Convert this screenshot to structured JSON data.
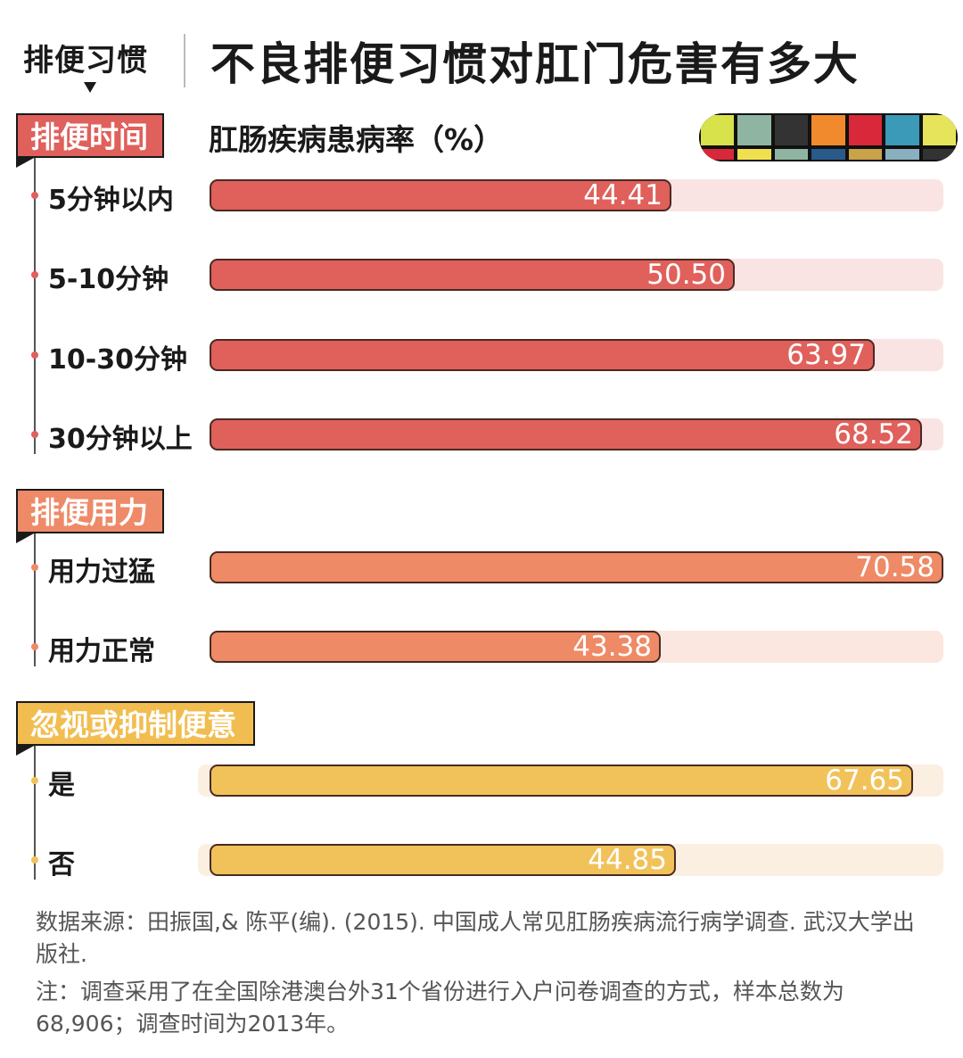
{
  "header": {
    "kicker": "排便习惯",
    "title": "不良排便习惯对肛门危害有多大",
    "subtitle": "肛肠疾病患病率（%）"
  },
  "decor": {
    "strip_top": [
      "#d8e24a",
      "#8fb5a2",
      "#333333",
      "#f08a2c",
      "#d8283a",
      "#3a9ab8",
      "#e6e45a"
    ],
    "strip_bottom": [
      "#d8283a",
      "#f0e050",
      "#8fb5a2",
      "#2a5a8a",
      "#c9a24a",
      "#8ab0c0",
      "#333333"
    ]
  },
  "chart_data": {
    "type": "bar",
    "orientation": "horizontal",
    "xlim": [
      0,
      70.58
    ],
    "groups": [
      {
        "name": "排便时间",
        "color": "#e0605c",
        "track_color": "#f9e4e3",
        "label_color": "#e0605c",
        "categories": [
          "5分钟以内",
          "5-10分钟",
          "10-30分钟",
          "30分钟以上"
        ],
        "values": [
          44.41,
          50.5,
          63.97,
          68.52
        ],
        "value_labels": [
          "44.41",
          "50.50",
          "63.97",
          "68.52"
        ]
      },
      {
        "name": "排便用力",
        "color": "#ef8a66",
        "track_color": "#fbe7df",
        "label_color": "#ee8a68",
        "categories": [
          "用力过猛",
          "用力正常"
        ],
        "values": [
          70.58,
          43.38
        ],
        "value_labels": [
          "70.58",
          "43.38"
        ]
      },
      {
        "name": "忽视或抑制便意",
        "color": "#f2c25a",
        "track_color": "#fbefe2",
        "label_color": "#f2bd50",
        "categories": [
          "是",
          "否"
        ],
        "values": [
          67.65,
          44.85
        ],
        "value_labels": [
          "67.65",
          "44.85"
        ]
      }
    ]
  },
  "footer": {
    "source": "数据来源：田振国,& 陈平(编). (2015). 中国成人常见肛肠疾病流行病学调查. 武汉大学出版社.",
    "note": "注：调查采用了在全国除港澳台外31个省份进行入户问卷调查的方式，样本总数为68,906；调查时间为2013年。"
  }
}
